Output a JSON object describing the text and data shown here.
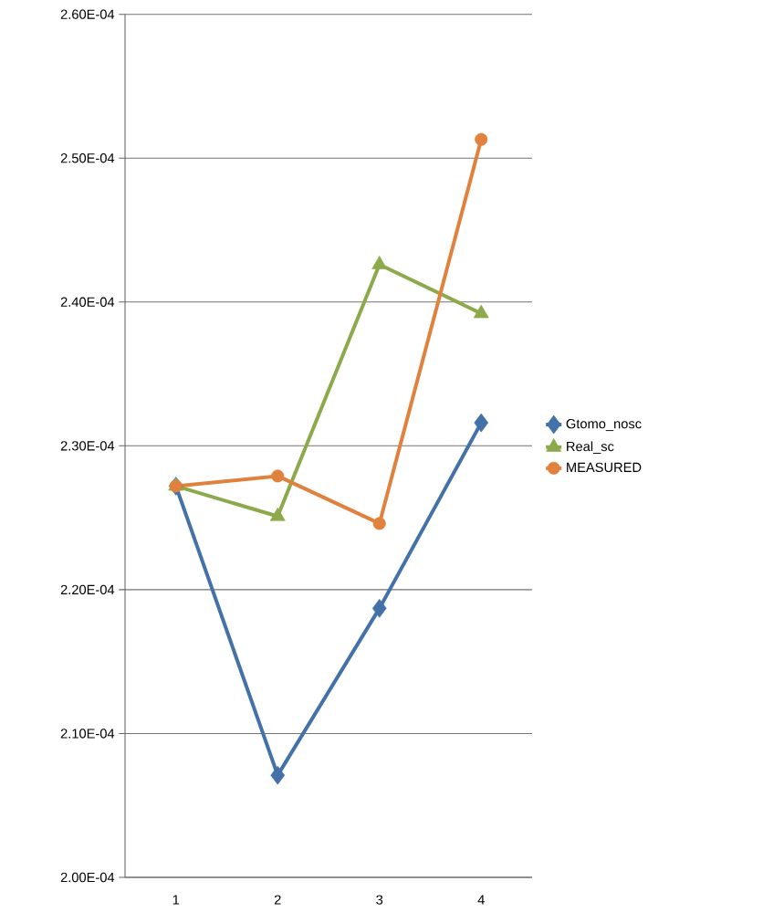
{
  "chart_data": {
    "type": "line",
    "categories": [
      "1",
      "2",
      "3",
      "4"
    ],
    "series": [
      {
        "name": "Gtomo_nosc",
        "color": "#4472a8",
        "marker": "diamond",
        "values": [
          0.0002272,
          0.0002071,
          0.0002187,
          0.0002316
        ]
      },
      {
        "name": "Real_sc",
        "color": "#8caa4b",
        "marker": "triangle",
        "values": [
          0.0002272,
          0.0002251,
          0.0002426,
          0.0002392
        ]
      },
      {
        "name": "MEASURED",
        "color": "#e0823d",
        "marker": "circle",
        "values": [
          0.0002272,
          0.0002279,
          0.0002246,
          0.0002513
        ]
      }
    ],
    "ylim": [
      0.0002,
      0.00026
    ],
    "yticks": [
      {
        "value": 0.0002,
        "label": "2.00E-04"
      },
      {
        "value": 0.00021,
        "label": "2.10E-04"
      },
      {
        "value": 0.00022,
        "label": "2.20E-04"
      },
      {
        "value": 0.00023,
        "label": "2.30E-04"
      },
      {
        "value": 0.00024,
        "label": "2.40E-04"
      },
      {
        "value": 0.00025,
        "label": "2.50E-04"
      },
      {
        "value": 0.00026,
        "label": "2.60E-04"
      }
    ],
    "grid": "y",
    "legend": "right",
    "line_style": "solid"
  }
}
